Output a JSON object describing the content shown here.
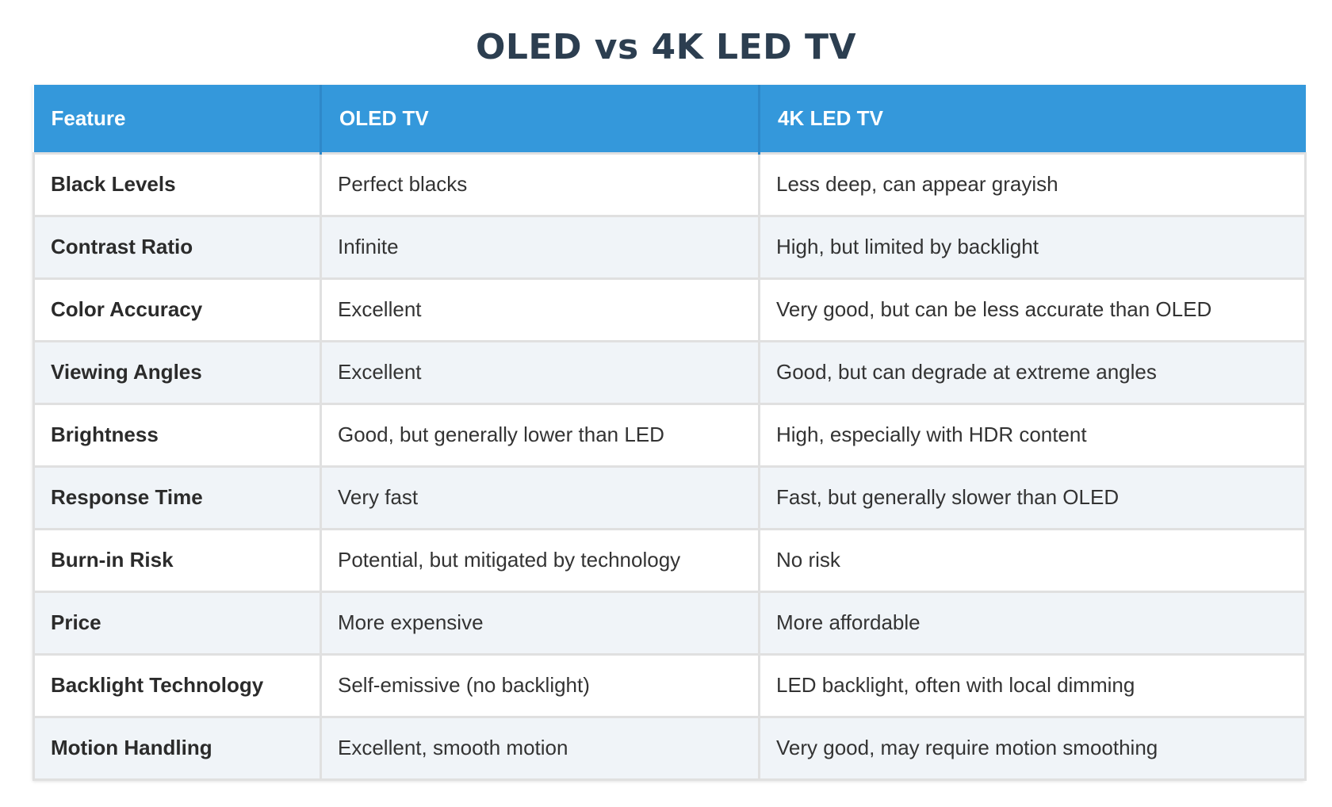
{
  "title": "OLED vs 4K LED TV",
  "colors": {
    "header_bg": "#3498db",
    "header_text": "#ffffff",
    "title_text": "#2c3e50",
    "row_alt_bg": "#f0f4f8",
    "border": "#e0e0e0"
  },
  "table": {
    "headers": [
      "Feature",
      "OLED TV",
      "4K LED TV"
    ],
    "rows": [
      [
        "Black Levels",
        "Perfect blacks",
        "Less deep, can appear grayish"
      ],
      [
        "Contrast Ratio",
        "Infinite",
        "High, but limited by backlight"
      ],
      [
        "Color Accuracy",
        "Excellent",
        "Very good, but can be less accurate than OLED"
      ],
      [
        "Viewing Angles",
        "Excellent",
        "Good, but can degrade at extreme angles"
      ],
      [
        "Brightness",
        "Good, but generally lower than LED",
        "High, especially with HDR content"
      ],
      [
        "Response Time",
        "Very fast",
        "Fast, but generally slower than OLED"
      ],
      [
        "Burn-in Risk",
        "Potential, but mitigated by technology",
        "No risk"
      ],
      [
        "Price",
        "More expensive",
        "More affordable"
      ],
      [
        "Backlight Technology",
        "Self-emissive (no backlight)",
        "LED backlight, often with local dimming"
      ],
      [
        "Motion Handling",
        "Excellent, smooth motion",
        "Very good, may require motion smoothing"
      ]
    ]
  }
}
